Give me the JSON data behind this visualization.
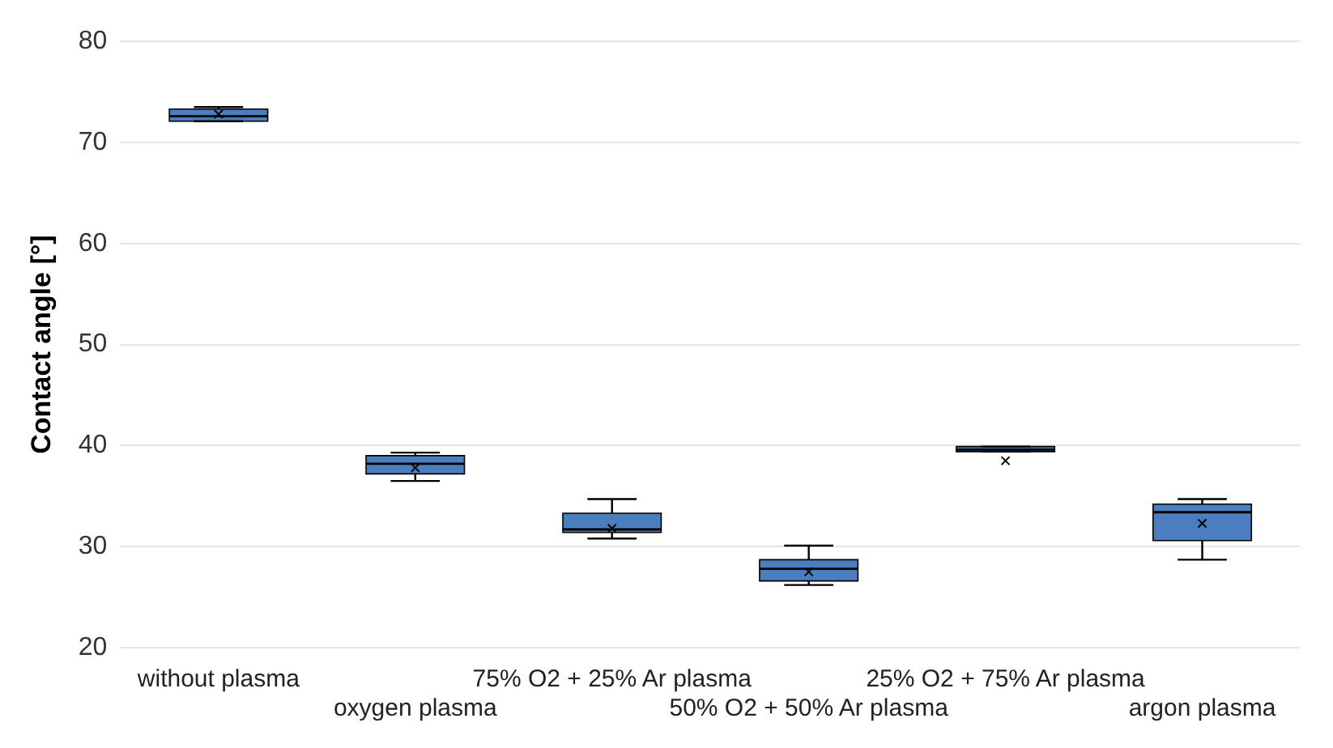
{
  "chart_data": {
    "type": "box",
    "ylabel": "Contact angle [°]",
    "categories": [
      "without plasma",
      "oxygen plasma",
      "75% O2 + 25% Ar plasma",
      "50% O2 + 50% Ar plasma",
      "25% O2 + 75% Ar plasma",
      "argon plasma"
    ],
    "series": [
      {
        "color": "#4a7ebf",
        "boxes": [
          {
            "low": 72.1,
            "q1": 72.1,
            "median": 72.6,
            "q3": 73.3,
            "high": 73.5,
            "mean": 72.8
          },
          {
            "low": 36.5,
            "q1": 37.2,
            "median": 38.2,
            "q3": 39.0,
            "high": 39.3,
            "mean": 37.8
          },
          {
            "low": 30.8,
            "q1": 31.4,
            "median": 31.7,
            "q3": 33.3,
            "high": 34.7,
            "mean": 31.8
          },
          {
            "low": 26.2,
            "q1": 26.6,
            "median": 27.8,
            "q3": 28.7,
            "high": 30.1,
            "mean": 27.5
          },
          {
            "low": 39.4,
            "q1": 39.4,
            "median": 39.6,
            "q3": 39.9,
            "high": 39.9,
            "mean": 38.5
          },
          {
            "low": 28.7,
            "q1": 30.6,
            "median": 33.4,
            "q3": 34.2,
            "high": 34.7,
            "mean": 32.3
          }
        ]
      }
    ],
    "ylim": [
      20,
      80
    ],
    "yticks": [
      20,
      30,
      40,
      50,
      60,
      70,
      80
    ],
    "grid": "y",
    "legend": false
  }
}
